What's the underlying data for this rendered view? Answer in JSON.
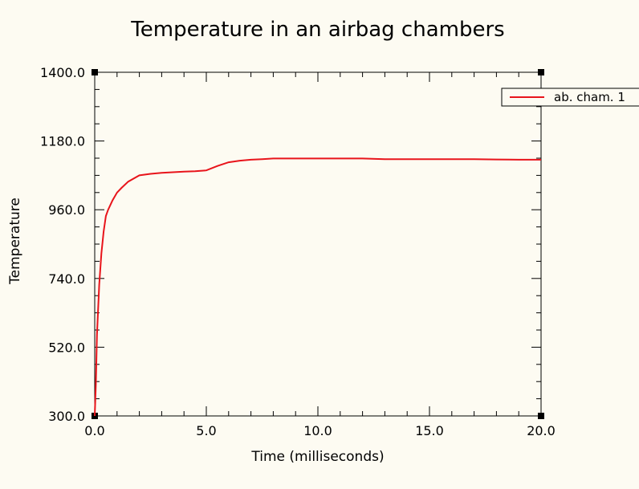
{
  "chart_data": {
    "type": "line",
    "title": "Temperature in an airbag chambers",
    "xlabel": "Time (milliseconds)",
    "ylabel": "Temperature",
    "xlim": [
      0.0,
      20.0
    ],
    "ylim": [
      300.0,
      1400.0
    ],
    "x_ticks": [
      0.0,
      5.0,
      10.0,
      15.0,
      20.0
    ],
    "x_tick_labels": [
      "0.0",
      "5.0",
      "10.0",
      "15.0",
      "20.0"
    ],
    "y_ticks": [
      300.0,
      520.0,
      740.0,
      960.0,
      1180.0,
      1400.0
    ],
    "y_tick_labels": [
      "300.0",
      "520.0",
      "740.0",
      "960.0",
      "1180.0",
      "1400.0"
    ],
    "grid": false,
    "legend_position": "top-right",
    "series": [
      {
        "name": "ab. cham. 1",
        "color": "#e8141b",
        "x": [
          0.0,
          0.05,
          0.1,
          0.15,
          0.2,
          0.3,
          0.4,
          0.5,
          0.6,
          0.8,
          1.0,
          1.2,
          1.5,
          2.0,
          2.5,
          3.0,
          4.0,
          4.5,
          5.0,
          5.5,
          6.0,
          6.5,
          7.0,
          7.5,
          8.0,
          9.0,
          10.0,
          11.0,
          12.0,
          13.0,
          14.0,
          15.0,
          16.0,
          17.0,
          18.0,
          19.0,
          20.0
        ],
        "y": [
          300,
          400,
          560,
          640,
          720,
          820,
          890,
          940,
          960,
          990,
          1015,
          1030,
          1050,
          1070,
          1075,
          1078,
          1082,
          1083,
          1086,
          1100,
          1112,
          1117,
          1120,
          1122,
          1124,
          1124,
          1124,
          1124,
          1124,
          1122,
          1122,
          1122,
          1122,
          1122,
          1121,
          1120,
          1120
        ]
      }
    ]
  }
}
